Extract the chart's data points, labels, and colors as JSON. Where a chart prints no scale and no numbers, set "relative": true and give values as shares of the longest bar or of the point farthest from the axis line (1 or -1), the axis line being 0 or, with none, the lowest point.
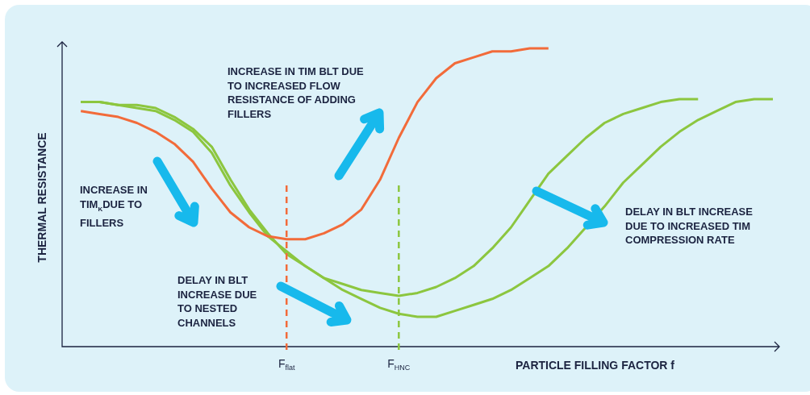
{
  "chart_data": {
    "type": "line",
    "xlabel": "PARTICLE FILLING FACTOR f",
    "ylabel": "THERMAL RESISTANCE",
    "relative": true,
    "tick_labels": "x",
    "grid": false,
    "legend": false,
    "marker": "none",
    "categories": [
      null,
      null,
      null,
      null,
      null,
      null,
      null,
      null,
      null,
      null,
      null,
      null,
      "F$_{flat}$",
      null,
      null,
      null,
      null,
      null,
      "F$_{HNC}$",
      null,
      null,
      null,
      null,
      null,
      null,
      null,
      null,
      null,
      null,
      null,
      null,
      null,
      null,
      null,
      null,
      null,
      null,
      null,
      null
    ],
    "series": [
      {
        "color": "#f26b3a",
        "values": [
          null,
          0.79,
          0.78,
          0.77,
          0.75,
          0.72,
          0.68,
          0.62,
          0.53,
          0.45,
          0.4,
          0.37,
          0.36,
          0.36,
          0.38,
          0.41,
          0.46,
          0.56,
          0.7,
          0.82,
          0.9,
          0.95,
          0.97,
          0.99,
          0.99,
          1.0,
          1.0,
          null,
          null,
          null,
          null,
          null,
          null,
          null,
          null,
          null,
          null,
          null,
          null
        ]
      },
      {
        "color": "#8cc63f",
        "values": [
          null,
          0.82,
          0.82,
          0.81,
          0.81,
          0.8,
          0.77,
          0.73,
          0.67,
          0.56,
          0.46,
          0.38,
          0.31,
          0.27,
          0.23,
          0.21,
          0.19,
          0.18,
          0.17,
          0.18,
          0.2,
          0.23,
          0.27,
          0.33,
          0.4,
          0.49,
          0.58,
          0.64,
          0.7,
          0.75,
          0.78,
          0.8,
          0.82,
          0.83,
          0.83,
          null,
          null,
          null,
          null
        ]
      },
      {
        "color": "#8cc63f",
        "values": [
          null,
          0.82,
          0.82,
          0.81,
          0.8,
          0.79,
          0.76,
          0.72,
          0.65,
          0.54,
          0.45,
          0.37,
          0.32,
          0.27,
          0.23,
          0.19,
          0.16,
          0.13,
          0.11,
          0.1,
          0.1,
          0.12,
          0.14,
          0.16,
          0.19,
          0.23,
          0.27,
          0.33,
          0.4,
          0.47,
          0.55,
          0.61,
          0.67,
          0.72,
          0.76,
          0.79,
          0.82,
          0.83,
          0.83
        ]
      }
    ],
    "ref_lines": [
      {
        "axis": "x",
        "value": "F$_{flat}$",
        "color": "#f26b3a",
        "line_style": "dashed"
      },
      {
        "axis": "x",
        "value": "F$_{HNC}$",
        "color": "#8cc63f",
        "line_style": "dashed"
      }
    ],
    "annotations": [
      "INCREASE IN TIM BLT DUE TO INCREASED FLOW RESISTANCE OF ADDING FILLERS",
      "INCREASE IN TIM$_{K}$DUE TO FILLERS",
      "DELAY IN BLT INCREASE DUE TO NESTED CHANNELS",
      "DELAY IN BLT INCREASE DUE TO INCREASED TIM COMPRESSION RATE"
    ]
  }
}
